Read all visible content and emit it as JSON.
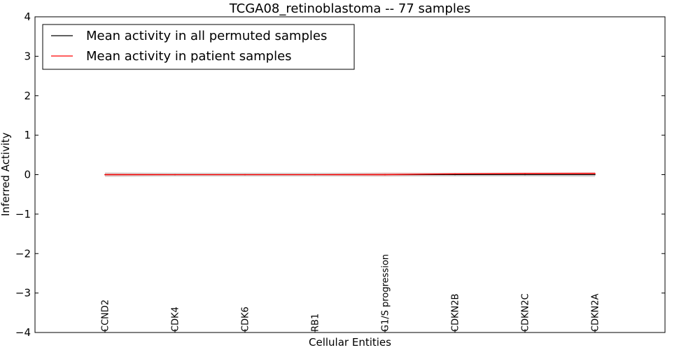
{
  "chart_data": {
    "type": "line",
    "title": "TCGA08_retinoblastoma -- 77 samples",
    "xlabel": "Cellular Entities",
    "ylabel": "Inferred Activity",
    "ylim": [
      -4,
      4
    ],
    "yticks": [
      -4,
      -3,
      -2,
      -1,
      0,
      1,
      2,
      3,
      4
    ],
    "ytick_labels": [
      "−4",
      "−3",
      "−2",
      "−1",
      "0",
      "1",
      "2",
      "3",
      "4"
    ],
    "categories": [
      "CCND2",
      "CDK4",
      "CDK6",
      "RB1",
      "G1/S progression",
      "CDKN2B",
      "CDKN2C",
      "CDKN2A"
    ],
    "legend_position": "top-left",
    "series": [
      {
        "name": "Mean activity in all permuted samples",
        "color": "#000000",
        "values": [
          0,
          0,
          0,
          0,
          0,
          0,
          0,
          0
        ],
        "band": {
          "color": "#c8c8c8",
          "lower": [
            -0.06,
            -0.05,
            -0.05,
            -0.05,
            -0.05,
            -0.05,
            -0.05,
            -0.06
          ],
          "upper": [
            0.06,
            0.05,
            0.05,
            0.05,
            0.05,
            0.05,
            0.05,
            0.06
          ]
        }
      },
      {
        "name": "Mean activity in patient samples",
        "color": "#ff0000",
        "values": [
          0.0,
          0.0,
          0.0,
          0.0,
          0.0,
          0.02,
          0.03,
          0.03
        ],
        "band": {
          "color": "#f4a0a0",
          "lower": [
            -0.04,
            -0.02,
            -0.02,
            -0.02,
            -0.04,
            0.0,
            0.01,
            0.0
          ],
          "upper": [
            0.04,
            0.02,
            0.02,
            0.02,
            0.05,
            0.04,
            0.05,
            0.06
          ]
        }
      }
    ]
  }
}
